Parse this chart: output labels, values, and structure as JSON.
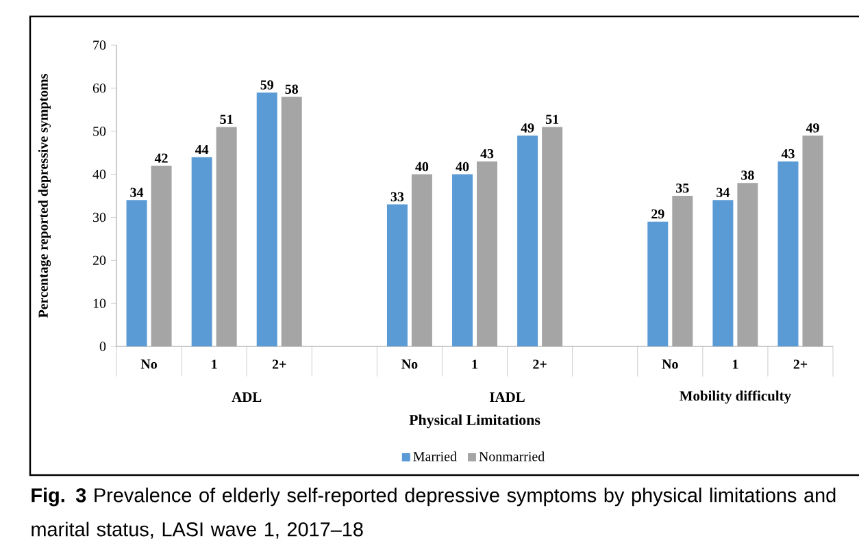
{
  "chart_data": {
    "type": "bar",
    "xlabel": "Physical Limitations",
    "ylabel": "Percentage reported depressive symptoms",
    "categories": [
      "No",
      "1",
      "2+",
      null,
      "No",
      "1",
      "2+",
      null,
      "No",
      "1",
      "2+"
    ],
    "series": [
      {
        "name": "Married",
        "color": "#5b9bd5",
        "values": [
          34,
          44,
          59,
          null,
          33,
          40,
          49,
          null,
          29,
          34,
          43
        ]
      },
      {
        "name": "Nonmarried",
        "color": "#a5a5a5",
        "values": [
          42,
          51,
          58,
          null,
          40,
          43,
          51,
          null,
          35,
          38,
          49
        ]
      }
    ],
    "ylim": [
      0,
      70
    ],
    "yticks": [
      0,
      10,
      20,
      30,
      40,
      50,
      60,
      70
    ],
    "data_labels": true,
    "legend": "bottom",
    "grid": false,
    "annotations": [
      "ADL",
      "IADL",
      "Mobility difficulty",
      "**Fig. 3** Prevalence of elderly self-reported depressive symptoms by physical limitations and marital status, LASI wave 1, 2017–18"
    ]
  }
}
